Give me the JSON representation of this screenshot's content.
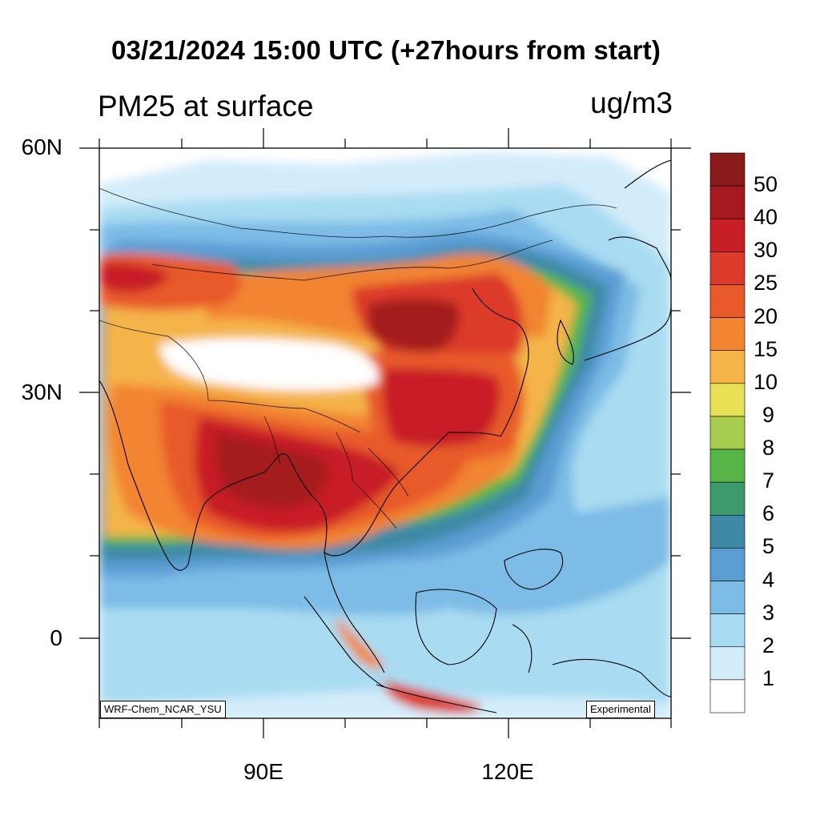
{
  "header": {
    "title": "03/21/2024 15:00 UTC (+27hours from start)",
    "variable": "PM25 at surface",
    "units": "ug/m3"
  },
  "map": {
    "lat_ticks": [
      "60N",
      "30N",
      "0"
    ],
    "lon_ticks": [
      "90E",
      "120E"
    ],
    "lat_range": [
      -10,
      60
    ],
    "lon_range": [
      70,
      140
    ],
    "model_label": "WRF-Chem_NCAR_YSU",
    "status_label": "Experimental"
  },
  "colorbar": {
    "labels": [
      "50",
      "40",
      "30",
      "25",
      "20",
      "15",
      "10",
      "9",
      "8",
      "7",
      "6",
      "5",
      "4",
      "3",
      "2",
      "1"
    ],
    "colors": [
      "#8b1a1a",
      "#a51a1f",
      "#c81e26",
      "#dc3a2a",
      "#e85a2a",
      "#f28432",
      "#f4b448",
      "#e8e055",
      "#a8cc4e",
      "#57b548",
      "#3e9a6c",
      "#3e8aa6",
      "#5b9ed4",
      "#7dbce6",
      "#a9dcf2",
      "#d3ecfa",
      "#ffffff"
    ]
  }
}
